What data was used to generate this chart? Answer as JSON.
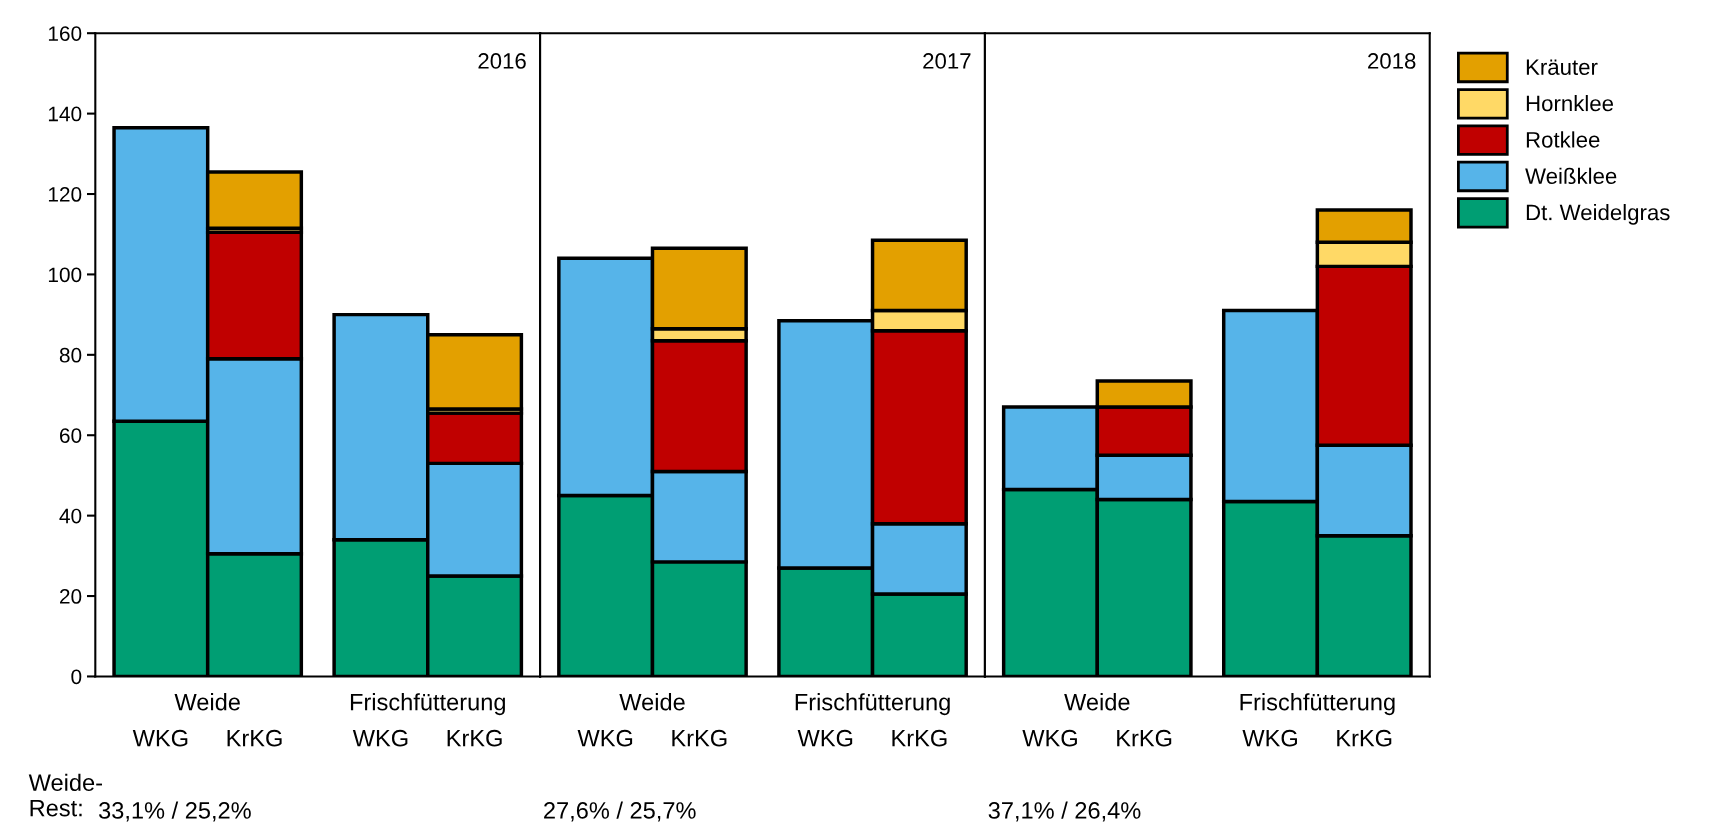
{
  "chart_data": [
    {
      "type": "bar",
      "stacked": true,
      "title": "2016",
      "categories": [
        "WKG",
        "KrKG",
        "WKG",
        "KrKG"
      ],
      "ylim": [
        0,
        160
      ],
      "yticks": [
        0,
        20,
        40,
        60,
        80,
        100,
        120,
        140,
        160
      ],
      "legend": "right",
      "annotations": [
        "Weide",
        "Frischfütterung",
        "Weide-\nRest:",
        "33,1% / 25,2%"
      ],
      "series": [
        {
          "name": "Dt. Weidelgras",
          "color": "#009e73",
          "values": [
            63.5,
            30.5,
            34,
            25
          ]
        },
        {
          "name": "Weißklee",
          "color": "#56b4e9",
          "values": [
            73,
            48.5,
            56,
            28
          ]
        },
        {
          "name": "Rotklee",
          "color": "#c00000",
          "values": [
            null,
            31.5,
            null,
            12.5
          ]
        },
        {
          "name": "Hornklee",
          "color": "#ffd966",
          "values": [
            null,
            1,
            null,
            1
          ]
        },
        {
          "name": "Kräuter",
          "color": "#e3a000",
          "values": [
            null,
            14,
            null,
            18.5
          ]
        }
      ]
    },
    {
      "type": "bar",
      "stacked": true,
      "title": "2017",
      "categories": [
        "WKG",
        "KrKG",
        "WKG",
        "KrKG"
      ],
      "ylim": [
        0,
        160
      ],
      "tick_labels": "x",
      "annotations": [
        "Weide",
        "Frischfütterung",
        "27,6% / 25,7%"
      ],
      "series": [
        {
          "color": "#009e73",
          "values": [
            45,
            28.5,
            27,
            20.5
          ]
        },
        {
          "color": "#56b4e9",
          "values": [
            59,
            22.5,
            61.5,
            17.5
          ]
        },
        {
          "color": "#c00000",
          "values": [
            null,
            32.5,
            null,
            48
          ]
        },
        {
          "color": "#ffd966",
          "values": [
            null,
            3,
            null,
            5
          ]
        },
        {
          "color": "#e3a000",
          "values": [
            null,
            20,
            null,
            17.5
          ]
        }
      ]
    },
    {
      "type": "bar",
      "stacked": true,
      "title": "2018",
      "categories": [
        "WKG",
        "KrKG",
        "WKG",
        "KrKG"
      ],
      "ylim": [
        0,
        160
      ],
      "tick_labels": "x",
      "annotations": [
        "Weide",
        "Frischfütterung",
        "37,1% / 26,4%"
      ],
      "series": [
        {
          "color": "#009e73",
          "values": [
            46.5,
            44,
            43.5,
            35
          ]
        },
        {
          "color": "#56b4e9",
          "values": [
            20.5,
            11,
            47.5,
            22.5
          ]
        },
        {
          "color": "#c00000",
          "values": [
            null,
            12,
            null,
            44.5
          ]
        },
        {
          "color": "#ffd966",
          "values": [
            null,
            null,
            null,
            6
          ]
        },
        {
          "color": "#e3a000",
          "values": [
            null,
            6.5,
            null,
            8
          ]
        }
      ]
    }
  ]
}
